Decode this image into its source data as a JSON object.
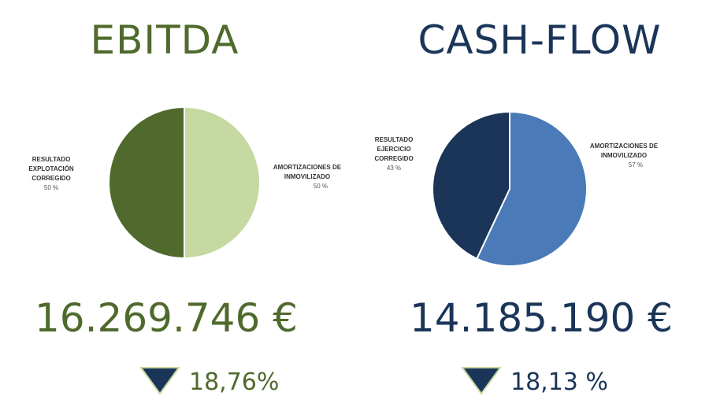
{
  "chart_data": [
    {
      "type": "pie",
      "title": "EBITDA",
      "categories": [
        "RESULTADO EXPLOTACIÓN CORREGIDO",
        "AMORTIZACIONES DE INMOVILIZADO"
      ],
      "values": [
        50,
        50
      ],
      "value_labels": [
        "50 %",
        "50 %"
      ],
      "colors": [
        "#4f6a2c",
        "#c5d9a0"
      ],
      "total_label": "16.269.746 €",
      "change_label": "18,76%",
      "change_direction": "down",
      "accent_color": "#4f6a2c",
      "arrow_color": "#1a3558"
    },
    {
      "type": "pie",
      "title": "CASH-FLOW",
      "categories": [
        "RESULTADO EJERCICIO CORREGIDO",
        "AMORTIZACIONES DE INMOVILIZADO"
      ],
      "values": [
        43,
        57
      ],
      "value_labels": [
        "43 %",
        "57 %"
      ],
      "colors": [
        "#1a3558",
        "#4a7ab8"
      ],
      "total_label": "14.185.190 €",
      "change_label": "18,13 %",
      "change_direction": "down",
      "accent_color": "#1a3558",
      "arrow_color": "#1a3558"
    }
  ]
}
